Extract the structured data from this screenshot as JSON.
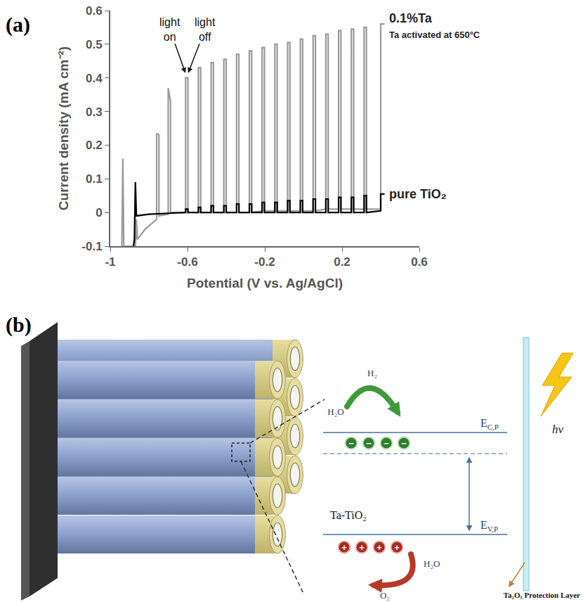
{
  "chart_data": {
    "type": "line",
    "label": "(a)",
    "xlabel": "Potential (V vs. Ag/AgCl)",
    "ylabel": "Current density (mA cm⁻²)",
    "xlim": [
      -1,
      0.6
    ],
    "xticks": [
      -1,
      -0.6,
      -0.2,
      0.2,
      0.6
    ],
    "ylim": [
      -0.1,
      0.6
    ],
    "yticks": [
      -0.1,
      0,
      0.1,
      0.2,
      0.3,
      0.4,
      0.5,
      0.6
    ],
    "grid": false,
    "annotations": [
      "light on",
      "light off",
      "Ta activated at 650°C"
    ],
    "series": [
      {
        "name": "0.1%Ta",
        "color": "#9a9a9a",
        "x": [
          -0.94,
          -0.935,
          -0.93,
          -0.87,
          -0.865,
          -0.86,
          -0.82,
          -0.76,
          -0.76,
          -0.748,
          -0.748,
          -0.7,
          -0.7,
          -0.688,
          -0.688,
          -0.61,
          -0.61,
          -0.598,
          -0.598,
          -0.544,
          -0.544,
          -0.532,
          -0.532,
          -0.478,
          -0.478,
          -0.466,
          -0.466,
          -0.412,
          -0.412,
          -0.4,
          -0.4,
          -0.346,
          -0.346,
          -0.334,
          -0.334,
          -0.28,
          -0.28,
          -0.268,
          -0.268,
          -0.214,
          -0.214,
          -0.202,
          -0.202,
          -0.148,
          -0.148,
          -0.136,
          -0.136,
          -0.082,
          -0.082,
          -0.07,
          -0.07,
          -0.016,
          -0.016,
          -0.004,
          -0.004,
          0.05,
          0.05,
          0.062,
          0.062,
          0.116,
          0.116,
          0.128,
          0.128,
          0.182,
          0.182,
          0.194,
          0.194,
          0.248,
          0.248,
          0.26,
          0.26,
          0.314,
          0.314,
          0.326,
          0.326,
          0.4,
          0.4,
          0.42
        ],
        "values": [
          -0.1,
          0.16,
          -0.1,
          -0.1,
          -0.02,
          -0.08,
          -0.05,
          -0.02,
          0.235,
          0.23,
          -0.01,
          -0.005,
          0.37,
          0.33,
          0,
          0,
          0.4,
          0.4,
          0,
          0,
          0.43,
          0.43,
          0,
          0,
          0.445,
          0.445,
          0,
          0,
          0.455,
          0.455,
          0,
          0,
          0.47,
          0.47,
          0,
          0,
          0.48,
          0.48,
          0,
          0.005,
          0.49,
          0.49,
          0.005,
          0.005,
          0.5,
          0.5,
          0.005,
          0.005,
          0.505,
          0.505,
          0.005,
          0.005,
          0.515,
          0.515,
          0.005,
          0.005,
          0.525,
          0.525,
          0.005,
          0.01,
          0.53,
          0.53,
          0.01,
          0.01,
          0.54,
          0.54,
          0.01,
          0.01,
          0.545,
          0.545,
          0.01,
          0.01,
          0.55,
          0.55,
          0.01,
          0.01,
          0.56,
          0.56
        ]
      },
      {
        "name": "pure TiO₂",
        "color": "#000000",
        "x": [
          -0.88,
          -0.875,
          -0.87,
          -0.865,
          -0.8,
          -0.61,
          -0.61,
          -0.598,
          -0.598,
          -0.544,
          -0.544,
          -0.532,
          -0.532,
          -0.478,
          -0.478,
          -0.466,
          -0.466,
          -0.412,
          -0.412,
          -0.4,
          -0.4,
          -0.346,
          -0.346,
          -0.334,
          -0.334,
          -0.28,
          -0.28,
          -0.268,
          -0.268,
          -0.214,
          -0.214,
          -0.202,
          -0.202,
          -0.148,
          -0.148,
          -0.136,
          -0.136,
          -0.082,
          -0.082,
          -0.07,
          -0.07,
          -0.016,
          -0.016,
          -0.004,
          -0.004,
          0.05,
          0.05,
          0.062,
          0.062,
          0.116,
          0.116,
          0.128,
          0.128,
          0.182,
          0.182,
          0.194,
          0.194,
          0.248,
          0.248,
          0.26,
          0.26,
          0.314,
          0.314,
          0.326,
          0.326,
          0.4,
          0.4,
          0.42
        ],
        "values": [
          -0.1,
          -0.08,
          0.09,
          -0.01,
          -0.005,
          0,
          0.01,
          0.01,
          0,
          0,
          0.015,
          0.015,
          0,
          0,
          0.02,
          0.02,
          0,
          0,
          0.02,
          0.02,
          0,
          0,
          0.025,
          0.025,
          0,
          0,
          0.025,
          0.025,
          0,
          0,
          0.03,
          0.03,
          0,
          0,
          0.03,
          0.03,
          0,
          0,
          0.035,
          0.035,
          0,
          0,
          0.035,
          0.035,
          0,
          0,
          0.04,
          0.04,
          0,
          0,
          0.04,
          0.04,
          0,
          0,
          0.045,
          0.045,
          0,
          0,
          0.045,
          0.045,
          0,
          0,
          0.05,
          0.05,
          0,
          0.005,
          0.055,
          0.055
        ]
      }
    ]
  },
  "diagram": {
    "label": "(b)",
    "material": "Ta-TiO₂",
    "conduction_band": {
      "symbol": "E",
      "subscript": "C,P"
    },
    "valence_band": {
      "symbol": "E",
      "subscript": "V,P"
    },
    "electrons": {
      "count": 4,
      "sign": "−"
    },
    "holes": {
      "count": 4,
      "sign": "+"
    },
    "reduction": {
      "reactant": "H₂O",
      "product": "H₂"
    },
    "oxidation": {
      "reactant": "H₂O",
      "product": "O₂"
    },
    "light": "hν",
    "protection_layer": "Ta₂O₅ Protection Layer"
  }
}
